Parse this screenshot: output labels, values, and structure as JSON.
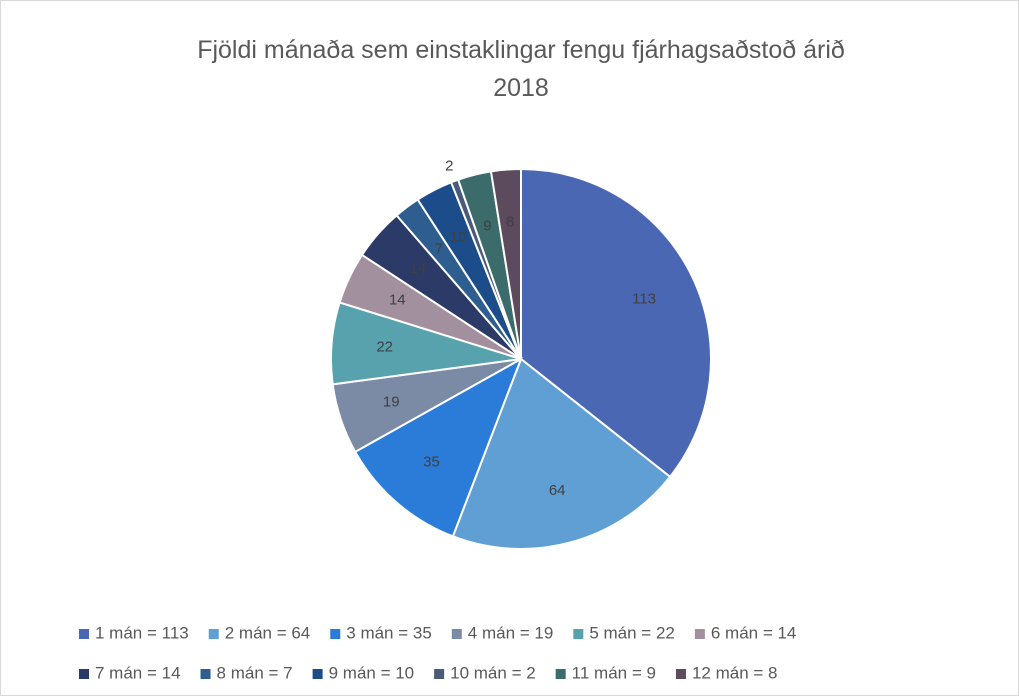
{
  "chart_data": {
    "type": "pie",
    "title": "Fjöldi mánaða sem einstaklingar fengu fjárhagsaðstoð árið 2018",
    "categories": [
      "1 mán = 113",
      "2 mán = 64",
      "3 mán = 35",
      "4 mán = 19",
      "5 mán = 22",
      "6 mán = 14",
      "7 mán = 14",
      "8 mán = 7",
      "9 mán = 10",
      "10 mán = 2",
      "11 mán = 9",
      "12 mán = 8"
    ],
    "values": [
      113,
      64,
      35,
      19,
      22,
      14,
      14,
      7,
      10,
      2,
      9,
      8
    ],
    "colors": [
      "#4a67b3",
      "#609fd4",
      "#2b7bd9",
      "#7b8ba6",
      "#58a2ae",
      "#a3909f",
      "#2b3a66",
      "#2e5e90",
      "#1c4c89",
      "#4b5a7a",
      "#3b6b6b",
      "#5b4b5c"
    ],
    "legend": "bottom"
  }
}
